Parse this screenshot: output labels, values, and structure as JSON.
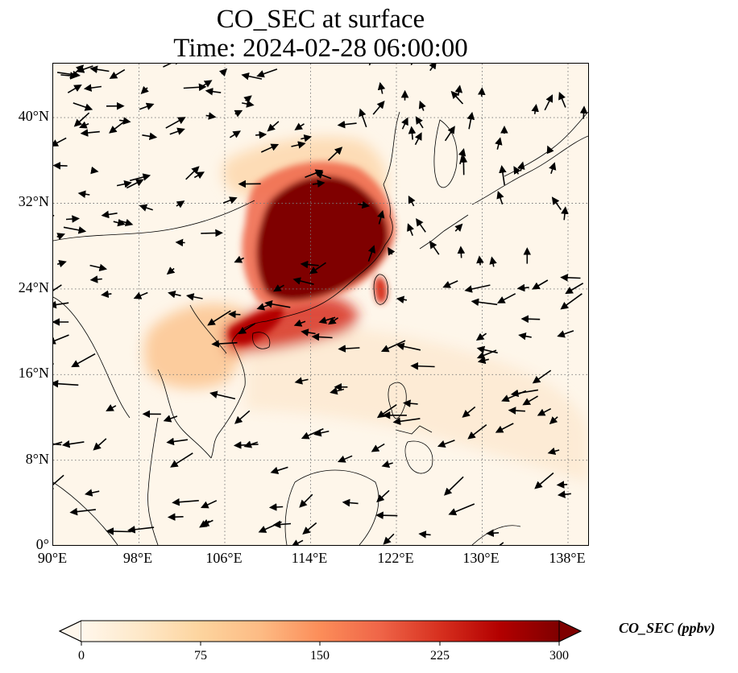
{
  "title": {
    "line1": "CO_SEC at surface",
    "line2": "Time: 2024-02-28 06:00:00"
  },
  "map": {
    "extent_lon": [
      90,
      140
    ],
    "extent_lat": [
      0,
      45
    ],
    "lat_ticks": [
      {
        "value": 0,
        "label": "0°"
      },
      {
        "value": 8,
        "label": "8°N"
      },
      {
        "value": 16,
        "label": "16°N"
      },
      {
        "value": 24,
        "label": "24°N"
      },
      {
        "value": 32,
        "label": "32°N"
      },
      {
        "value": 40,
        "label": "40°N"
      }
    ],
    "lon_ticks": [
      {
        "value": 90,
        "label": "90°E"
      },
      {
        "value": 98,
        "label": "98°E"
      },
      {
        "value": 106,
        "label": "106°E"
      },
      {
        "value": 114,
        "label": "114°E"
      },
      {
        "value": 122,
        "label": "122°E"
      },
      {
        "value": 130,
        "label": "130°E"
      },
      {
        "value": 138,
        "label": "138°E"
      }
    ],
    "gridlines": "dotted",
    "field": "CO_SEC",
    "plume_regions": [
      {
        "name": "eastern-china-core",
        "level": 300
      },
      {
        "name": "southern-china-band",
        "level": 280
      },
      {
        "name": "north-china-fringe",
        "level": 120
      },
      {
        "name": "indochina-haze",
        "level": 90
      },
      {
        "name": "taiwan",
        "level": 230
      },
      {
        "name": "offshore-outflow",
        "level": 40
      }
    ],
    "wind_vectors": true
  },
  "colorbar": {
    "label": "CO_SEC (ppbv)",
    "min": 0,
    "max": 300,
    "extend": "both",
    "colormap": "OrRd",
    "colors": [
      "#fff7ec",
      "#fee8c8",
      "#fdd49e",
      "#fdbb84",
      "#fc8d59",
      "#ef6548",
      "#d7301f",
      "#b30000",
      "#7f0000"
    ],
    "ticks": [
      {
        "value": 0,
        "label": "0"
      },
      {
        "value": 75,
        "label": "75"
      },
      {
        "value": 150,
        "label": "150"
      },
      {
        "value": 225,
        "label": "225"
      },
      {
        "value": 300,
        "label": "300"
      }
    ]
  }
}
